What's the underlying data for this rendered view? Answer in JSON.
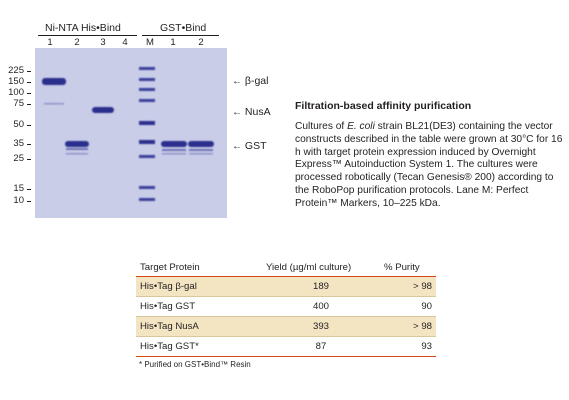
{
  "gel": {
    "group1_label": "Ni-NTA His•Bind",
    "group2_label": "GST•Bind",
    "lanes1": [
      "1",
      "2",
      "3",
      "4"
    ],
    "lane_m": "M",
    "lanes2": [
      "1",
      "2"
    ],
    "mw_markers": [
      "225",
      "150",
      "100",
      "75",
      "50",
      "35",
      "25",
      "15",
      "10"
    ],
    "callouts": [
      "β-gal",
      "NusA",
      "GST"
    ],
    "arrow_glyph": "←"
  },
  "text": {
    "title": "Filtration-based affinity purification",
    "p1": "Cultures of ",
    "p_italic": "E. coli",
    "p2": " strain BL21(DE3) containing the vector constructs described in the table were grown at 30°C for 16 h with target protein expression induced by Overnight Express™ Autoinduction System 1. The cultures were processed robotically (Tecan Genesis® 200) according to the RoboPop purification protocols. Lane M: Perfect Protein™ Markers, 10–225 kDa."
  },
  "table": {
    "headers": [
      "Target Protein",
      "Yield (µg/ml culture)",
      "% Purity"
    ],
    "rows": [
      [
        "His•Tag β-gal",
        "189",
        "> 98"
      ],
      [
        "His•Tag GST",
        "400",
        "90"
      ],
      [
        "His•Tag NusA",
        "393",
        "> 98"
      ],
      [
        "His•Tag GST*",
        "87",
        "93"
      ]
    ],
    "footnote": "* Purified on GST•Bind™ Resin"
  },
  "colors": {
    "gel_background": "#c9cde8",
    "band": "#2b2f8c",
    "table_rule": "#d04a17",
    "table_shade": "#f3e4c2"
  }
}
